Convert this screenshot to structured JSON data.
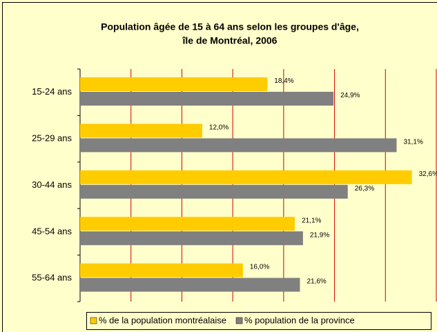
{
  "chart_data": {
    "type": "bar",
    "orientation": "horizontal",
    "title": [
      "Population âgée de 15 à 64 ans selon les groupes d'âge,",
      "île de Montréal, 2006"
    ],
    "categories": [
      "15-24 ans",
      "25-29 ans",
      "30-44 ans",
      "45-54 ans",
      "55-64 ans"
    ],
    "series": [
      {
        "name": "% de la population montréalaise",
        "color": "#FFCC00",
        "values": [
          18.4,
          12.0,
          32.6,
          21.1,
          16.0
        ],
        "value_labels": [
          "18,4%",
          "12,0%",
          "32,6%",
          "21,1%",
          "16,0%"
        ]
      },
      {
        "name": "% population de la province",
        "color": "#808080",
        "values": [
          24.9,
          31.1,
          26.3,
          21.9,
          21.6
        ],
        "value_labels": [
          "24,9%",
          "31,1%",
          "26,3%",
          "21,9%",
          "21,6%"
        ]
      }
    ],
    "xlim": [
      0,
      35
    ],
    "xticks": [
      0,
      5,
      10,
      15,
      20,
      25,
      30,
      35
    ],
    "grid": true,
    "grid_color": "#CC0000",
    "background": "#FFFFCC",
    "legend": "bottom"
  }
}
